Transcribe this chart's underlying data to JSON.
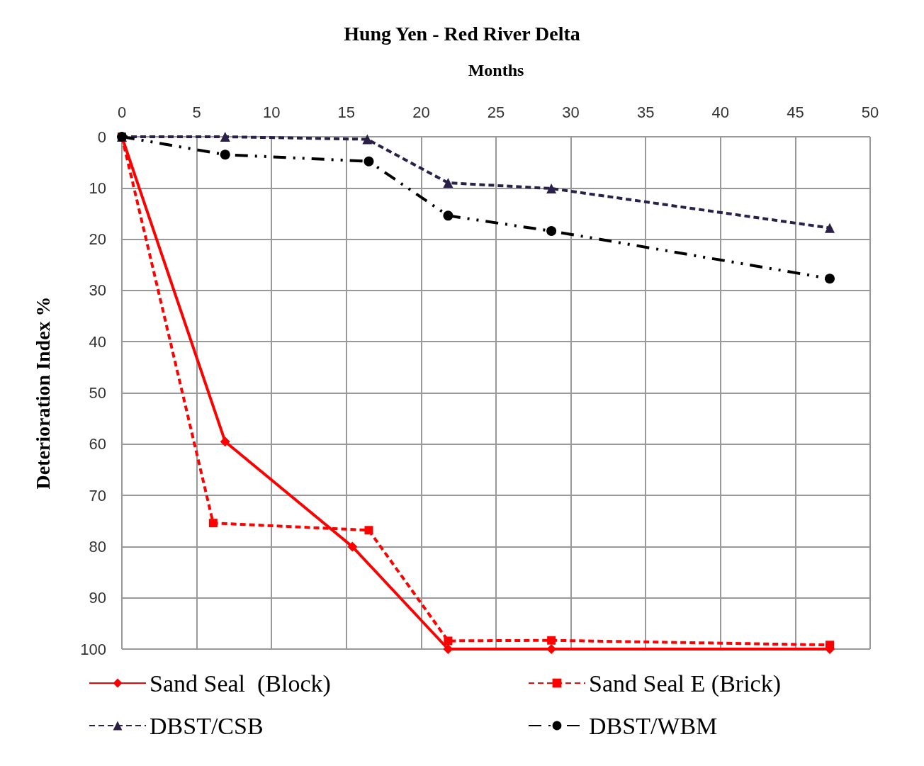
{
  "chart_data": {
    "type": "line",
    "title": "Hung Yen - Red River Delta",
    "xlabel": "Months",
    "ylabel": "Deterioration Index %",
    "xlim": [
      0,
      50
    ],
    "xticks": [
      0,
      5,
      10,
      15,
      20,
      25,
      30,
      35,
      40,
      45,
      50
    ],
    "ylim": [
      100,
      0
    ],
    "yticks": [
      0,
      10,
      20,
      30,
      40,
      50,
      60,
      70,
      80,
      90,
      100
    ],
    "grid": true,
    "legend": "bottom",
    "series": [
      {
        "name": "Sand Seal  (Block)",
        "color": "#ff0000",
        "marker": "diamond",
        "line_style": "solid",
        "x": [
          0,
          6.9,
          15.4,
          21.8,
          28.7,
          47.3
        ],
        "values": [
          0,
          59.5,
          80,
          100,
          100,
          100
        ]
      },
      {
        "name": "Sand Seal E (Brick)",
        "color": "#ff0000",
        "marker": "square",
        "line_style": "dashed",
        "x": [
          0,
          6.1,
          16.5,
          21.8,
          28.7,
          47.3
        ],
        "values": [
          0,
          75.4,
          76.8,
          98.4,
          98.3,
          99.2
        ]
      },
      {
        "name": "DBST/CSB",
        "color": "#2a2048",
        "marker": "triangle",
        "line_style": "dashed",
        "x": [
          0,
          6.9,
          16.4,
          21.8,
          28.7,
          47.3
        ],
        "values": [
          0,
          0,
          0.5,
          9,
          10.1,
          17.8
        ]
      },
      {
        "name": "DBST/WBM",
        "color": "#000000",
        "marker": "circle",
        "line_style": "dashdotdot",
        "x": [
          0,
          6.9,
          16.5,
          21.8,
          28.7,
          47.3
        ],
        "values": [
          0,
          3.5,
          4.8,
          15.4,
          18.4,
          27.7
        ]
      }
    ]
  }
}
